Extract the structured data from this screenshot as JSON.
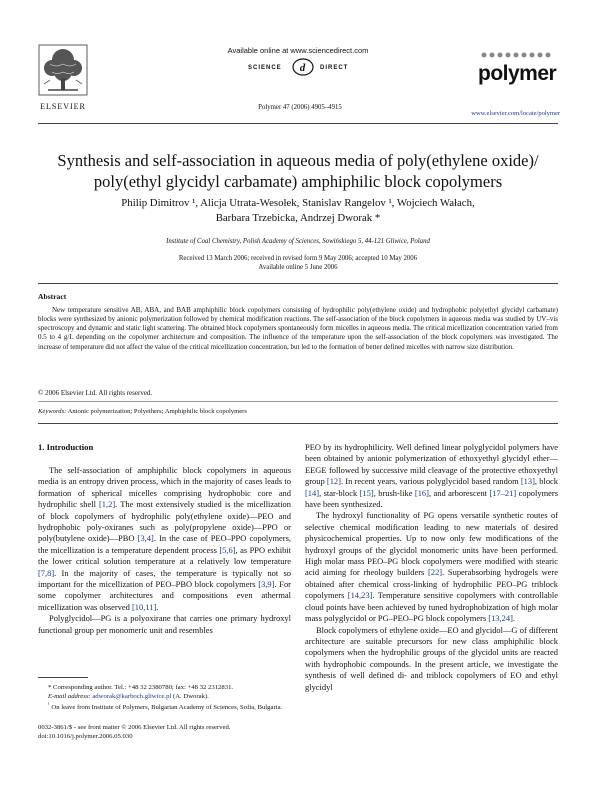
{
  "header": {
    "publisher": "ELSEVIER",
    "sciencedirect_available": "Available online at www.sciencedirect.com",
    "sciencedirect_left": "SCIENCE",
    "sciencedirect_right": "DIRECT",
    "journal_ref": "Polymer 47 (2006) 4905–4915",
    "journal_name": "polymer",
    "journal_url": "www.elsevier.com/locate/polymer"
  },
  "paper": {
    "title_line1": "Synthesis and self-association in aqueous media of poly(ethylene oxide)/",
    "title_line2": "poly(ethyl glycidyl carbamate) amphiphilic block copolymers",
    "authors_line1": "Philip Dimitrov ¹, Alicja Utrata-Wesołek, Stanislav Rangelov ¹, Wojciech Wałach,",
    "authors_line2": "Barbara Trzebicka, Andrzej Dworak *",
    "affiliation": "Institute of Coal Chemistry, Polish Academy of Sciences, Sowińskiego 5, 44-121 Gliwice, Poland",
    "dates_line1": "Received 13 March 2006; received in revised form 9 May 2006; accepted 10 May 2006",
    "dates_line2": "Available online 5 June 2006"
  },
  "abstract": {
    "heading": "Abstract",
    "body": "New temperature sensitive AB, ABA, and BAB amphiphilic block copolymers consisting of hydrophilic poly(ethylene oxide) and hydrophobic poly(ethyl glycidyl carbamate) blocks were synthesized by anionic polymerization followed by chemical modification reactions. The self-association of the block copolymers in aqueous media was studied by UV–vis spectroscopy and dynamic and static light scattering. The obtained block copolymers spontaneously form micelles in aqueous media. The critical micellization concentration varied from 0.5 to 4 g/L depending on the copolymer architecture and composition. The influence of the temperature upon the self-association of the block copolymers was investigated. The increase of temperature did not affect the value of the critical micellization concentration, but led to the formation of better defined micelles with narrow size distribution.",
    "copyright": "© 2006 Elsevier Ltd. All rights reserved.",
    "keywords_label": "Keywords:",
    "keywords": "Anionic polymerization; Polyethers; Amphiphilic block copolymers"
  },
  "section": {
    "heading": "1. Introduction"
  },
  "left_column": {
    "p1": {
      "t1": "The self-association of amphiphilic block copolymers in aqueous media is an entropy driven process, which in the majority of cases leads to formation of spherical micelles comprising hydrophobic core and hydrophilic shell ",
      "r1": "[1,2]",
      "t2": ". The most extensively studied is the micellization of block copolymers of hydrophilic poly(ethylene oxide)—PEO and hydrophobic poly-oxiranes such as poly(propylene oxide)—PPO or poly(butylene oxide)—PBO ",
      "r2": "[3,4]",
      "t3": ". In the case of PEO–PPO copolymers, the micellization is a temperature dependent process ",
      "r3": "[5,6]",
      "t4": ", as PPO exhibit the lower critical solution temperature at a relatively low temperature ",
      "r4": "[7,8]",
      "t5": ". In the majority of cases, the temperature is typically not so important for the micellization of PEO–PBO block copolymers ",
      "r5": "[3,9]",
      "t6": ". For some copolymer architectures and compositions even athermal micellization was observed ",
      "r6": "[10,11]",
      "t7": "."
    },
    "p2": "Polyglycidol—PG is a polyoxirane that carries one primary hydroxyl functional group per monomeric unit and resembles"
  },
  "right_column": {
    "p1": {
      "t1": "PEO by its hydrophilicity. Well defined linear polyglycidol polymers have been obtained by anionic polymerization of ethoxyethyl glycidyl ether—EEGE followed by successive mild cleavage of the protective ethoxyethyl group ",
      "r1": "[12]",
      "t2": ". In recent years, various polyglycidol based random ",
      "r2": "[13]",
      "t3": ", block ",
      "r3": "[14]",
      "t4": ", star-block ",
      "r4": "[15]",
      "t5": ", brush-like ",
      "r5": "[16]",
      "t6": ", and arborescent ",
      "r6": "[17–21]",
      "t7": " copolymers have been synthesized."
    },
    "p2": {
      "t1": "The hydroxyl functionality of PG opens versatile synthetic routes of selective chemical modification leading to new materials of desired physicochemical properties. Up to now only few modifications of the hydroxyl groups of the glycidol monomeric units have been performed. High molar mass PEO–PG block copolymers were modified with stearic acid aiming for rheology builders ",
      "r1": "[22]",
      "t2": ". Superabsorbing hydrogels were obtained after chemical cross-linking of hydrophilic PEO–PG triblock copolymers ",
      "r2": "[14,23]",
      "t3": ". Temperature sensitive copolymers with controllable cloud points have been achieved by tuned hydrophobization of high molar mass polyglycidol or PG–PEO–PG block copolymers ",
      "r3": "[13,24]",
      "t4": "."
    },
    "p3": "Block copolymers of ethylene oxide—EO and glycidol—G of different architecture are suitable precursors for new class amphiphilic block copolymers when the hydrophilic groups of the glycidol units are reacted with hydrophobic compounds. In the present article, we investigate the synthesis of well defined di- and triblock copolymers of EO and ethyl glycidyl"
  },
  "footnotes": {
    "corresponding_prefix": "* Corresponding author. Tel.: +48 32 2380780; fax: +48 32 2312831.",
    "email_label": "E-mail address:",
    "email": "adworak@karboch.gliwice.pl",
    "email_suffix": " (A. Dworak).",
    "note1_prefix": "¹",
    "note1": "On leave from Institute of Polymers, Bulgarian Academy of Sciences, Sofia, Bulgaria."
  },
  "front_matter": {
    "issn": "0032-3861/$ - see front matter © 2006 Elsevier Ltd. All rights reserved.",
    "doi": "doi:10.1016/j.polymer.2006.05.030"
  }
}
